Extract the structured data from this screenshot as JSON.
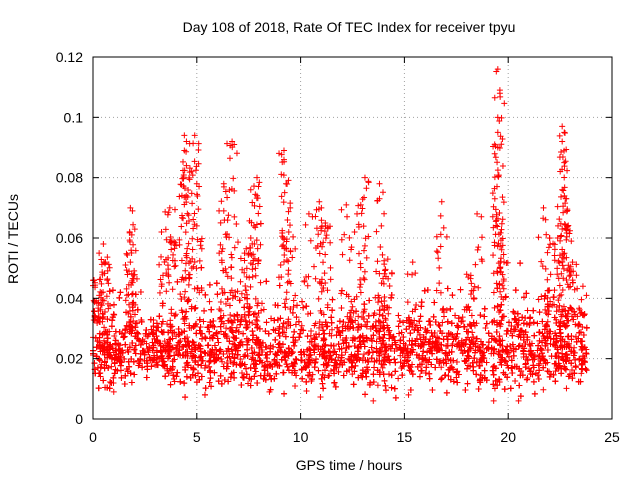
{
  "chart_data": {
    "type": "scatter",
    "title": "Day 108 of 2018, Rate Of TEC Index for receiver tpyu",
    "xlabel": "GPS time / hours",
    "ylabel": "ROTI / TECUs",
    "xlim": [
      0,
      25
    ],
    "ylim": [
      0,
      0.12
    ],
    "xticks": [
      0,
      5,
      10,
      15,
      20,
      25
    ],
    "yticks": [
      0,
      0.02,
      0.04,
      0.06,
      0.08,
      0.1,
      0.12
    ],
    "xtick_labels": [
      "0",
      "5",
      "10",
      "15",
      "20",
      "25"
    ],
    "ytick_labels": [
      "0",
      "0.02",
      "0.04",
      "0.06",
      "0.08",
      "0.1",
      "0.12"
    ],
    "grid": true,
    "marker": "+",
    "color": "#ff0000",
    "series": [
      {
        "name": "ROTI",
        "x_range": [
          0,
          23.8
        ],
        "baseline_mean": 0.022,
        "typical_range": [
          0.008,
          0.035
        ],
        "sample_points": [
          {
            "x": 0.0,
            "y": 0.046
          },
          {
            "x": 0.3,
            "y": 0.041
          },
          {
            "x": 0.5,
            "y": 0.058
          },
          {
            "x": 0.6,
            "y": 0.052
          },
          {
            "x": 1.8,
            "y": 0.07
          },
          {
            "x": 1.8,
            "y": 0.052
          },
          {
            "x": 1.9,
            "y": 0.069
          },
          {
            "x": 3.3,
            "y": 0.062
          },
          {
            "x": 3.7,
            "y": 0.07
          },
          {
            "x": 3.8,
            "y": 0.059
          },
          {
            "x": 4.4,
            "y": 0.094
          },
          {
            "x": 4.4,
            "y": 0.089
          },
          {
            "x": 4.5,
            "y": 0.084
          },
          {
            "x": 4.5,
            "y": 0.092
          },
          {
            "x": 4.9,
            "y": 0.094
          },
          {
            "x": 5.0,
            "y": 0.078
          },
          {
            "x": 5.0,
            "y": 0.064
          },
          {
            "x": 6.3,
            "y": 0.069
          },
          {
            "x": 6.3,
            "y": 0.078
          },
          {
            "x": 6.7,
            "y": 0.092
          },
          {
            "x": 6.8,
            "y": 0.091
          },
          {
            "x": 7.3,
            "y": 0.055
          },
          {
            "x": 7.6,
            "y": 0.06
          },
          {
            "x": 7.6,
            "y": 0.076
          },
          {
            "x": 7.9,
            "y": 0.08
          },
          {
            "x": 7.9,
            "y": 0.074
          },
          {
            "x": 9.2,
            "y": 0.089
          },
          {
            "x": 9.2,
            "y": 0.086
          },
          {
            "x": 9.3,
            "y": 0.078
          },
          {
            "x": 9.5,
            "y": 0.07
          },
          {
            "x": 10.4,
            "y": 0.068
          },
          {
            "x": 10.9,
            "y": 0.072
          },
          {
            "x": 11.0,
            "y": 0.07
          },
          {
            "x": 11.2,
            "y": 0.064
          },
          {
            "x": 12.2,
            "y": 0.071
          },
          {
            "x": 12.6,
            "y": 0.062
          },
          {
            "x": 12.9,
            "y": 0.071
          },
          {
            "x": 13.1,
            "y": 0.08
          },
          {
            "x": 13.8,
            "y": 0.078
          },
          {
            "x": 13.8,
            "y": 0.073
          },
          {
            "x": 14.2,
            "y": 0.053
          },
          {
            "x": 15.4,
            "y": 0.052
          },
          {
            "x": 16.8,
            "y": 0.072
          },
          {
            "x": 18.0,
            "y": 0.048
          },
          {
            "x": 18.5,
            "y": 0.068
          },
          {
            "x": 19.5,
            "y": 0.116
          },
          {
            "x": 19.6,
            "y": 0.109
          },
          {
            "x": 19.6,
            "y": 0.108
          },
          {
            "x": 19.5,
            "y": 0.095
          },
          {
            "x": 19.5,
            "y": 0.09
          },
          {
            "x": 19.8,
            "y": 0.052
          },
          {
            "x": 21.7,
            "y": 0.07
          },
          {
            "x": 22.0,
            "y": 0.06
          },
          {
            "x": 22.4,
            "y": 0.064
          },
          {
            "x": 22.6,
            "y": 0.097
          },
          {
            "x": 22.7,
            "y": 0.095
          },
          {
            "x": 22.6,
            "y": 0.092
          },
          {
            "x": 22.7,
            "y": 0.085
          },
          {
            "x": 22.6,
            "y": 0.076
          },
          {
            "x": 22.8,
            "y": 0.073
          },
          {
            "x": 23.1,
            "y": 0.052
          },
          {
            "x": 23.6,
            "y": 0.044
          }
        ],
        "quiet_points": [
          {
            "x": 13.5,
            "y": 0.006
          },
          {
            "x": 19.3,
            "y": 0.006
          },
          {
            "x": 20.5,
            "y": 0.006
          },
          {
            "x": 1.0,
            "y": 0.009
          },
          {
            "x": 8.5,
            "y": 0.009
          },
          {
            "x": 15.2,
            "y": 0.008
          }
        ]
      }
    ]
  }
}
